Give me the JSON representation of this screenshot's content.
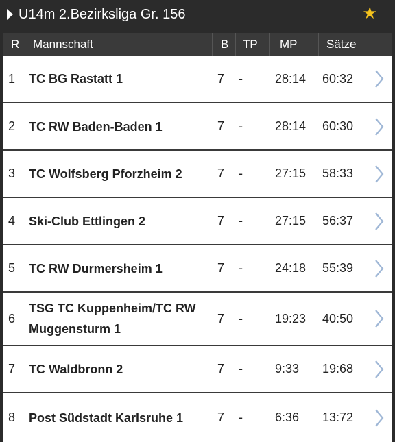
{
  "header": {
    "title": "U14m 2.Bezirksliga Gr. 156",
    "favorite_icon": "star-icon",
    "expand_icon": "triangle-right-icon"
  },
  "table": {
    "columns": [
      "R",
      "Mannschaft",
      "B",
      "TP",
      "MP",
      "Sätze"
    ],
    "rows": [
      {
        "rank": "1",
        "team": "TC BG Rastatt 1",
        "b": "7",
        "tp": "-",
        "mp": "28:14",
        "saetze": "60:32"
      },
      {
        "rank": "2",
        "team": "TC RW Baden-Baden 1",
        "b": "7",
        "tp": "-",
        "mp": "28:14",
        "saetze": "60:30"
      },
      {
        "rank": "3",
        "team": "TC Wolfsberg Pforzheim 2",
        "b": "7",
        "tp": "-",
        "mp": "27:15",
        "saetze": "58:33"
      },
      {
        "rank": "4",
        "team": "Ski-Club Ettlingen 2",
        "b": "7",
        "tp": "-",
        "mp": "27:15",
        "saetze": "56:37"
      },
      {
        "rank": "5",
        "team": "TC RW Durmersheim 1",
        "b": "7",
        "tp": "-",
        "mp": "24:18",
        "saetze": "55:39"
      },
      {
        "rank": "6",
        "team": "TSG TC Kuppenheim/TC RW Muggensturm 1",
        "b": "7",
        "tp": "-",
        "mp": "19:23",
        "saetze": "40:50"
      },
      {
        "rank": "7",
        "team": "TC Waldbronn 2",
        "b": "7",
        "tp": "-",
        "mp": "9:33",
        "saetze": "19:68"
      },
      {
        "rank": "8",
        "team": "Post Südstadt Karlsruhe 1",
        "b": "7",
        "tp": "-",
        "mp": "6:36",
        "saetze": "13:72"
      }
    ]
  },
  "colors": {
    "background": "#2b2b2b",
    "header_row": "#3a3a3a",
    "chevron": "#9fb7d6",
    "star": "#f4c21d"
  }
}
